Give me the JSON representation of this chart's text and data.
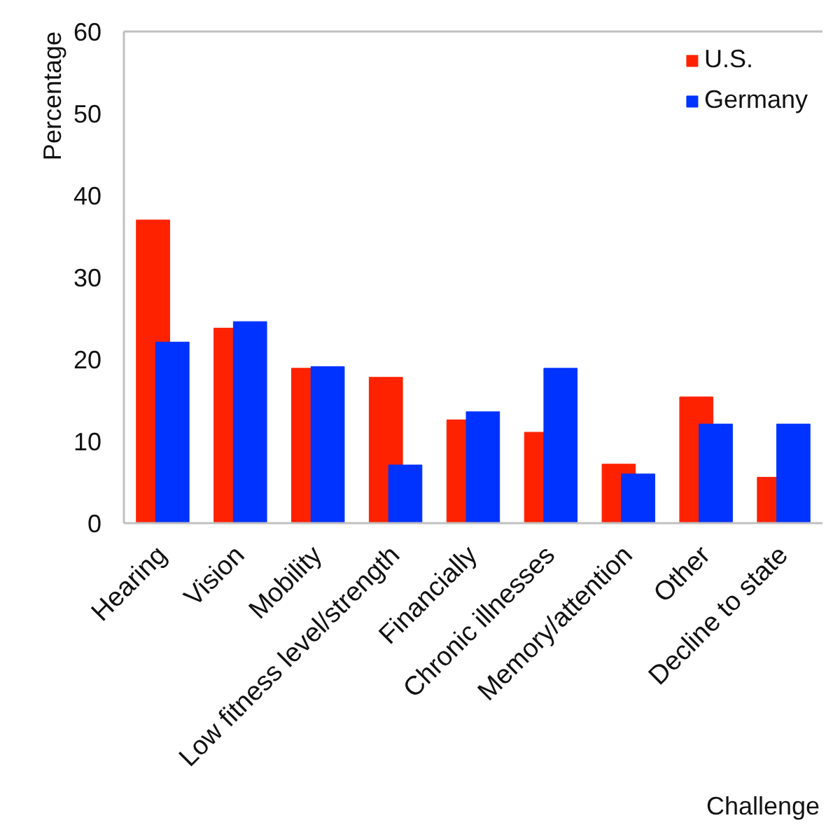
{
  "chart_data": {
    "type": "bar",
    "xlabel": "Challenge",
    "ylabel": "Percentage",
    "categories": [
      "Hearing",
      "Vision",
      "Mobility",
      "Low fitness level/strength",
      "Financially",
      "Chronic illnesses",
      "Memory/attention",
      "Other",
      "Decline to state"
    ],
    "series": [
      {
        "name": "U.S.",
        "color": "#ff2200",
        "values": [
          37,
          23.8,
          18.9,
          17.8,
          12.6,
          11.1,
          7.2,
          15.4,
          5.6
        ]
      },
      {
        "name": "Germany",
        "color": "#0033ff",
        "values": [
          22.1,
          24.6,
          19.1,
          7.1,
          13.6,
          18.9,
          6.0,
          12.1,
          12.1
        ]
      }
    ],
    "ylim": [
      0,
      60
    ],
    "yticks": [
      0,
      10,
      20,
      30,
      40,
      50,
      60
    ],
    "grid": false,
    "legend": "top right"
  }
}
